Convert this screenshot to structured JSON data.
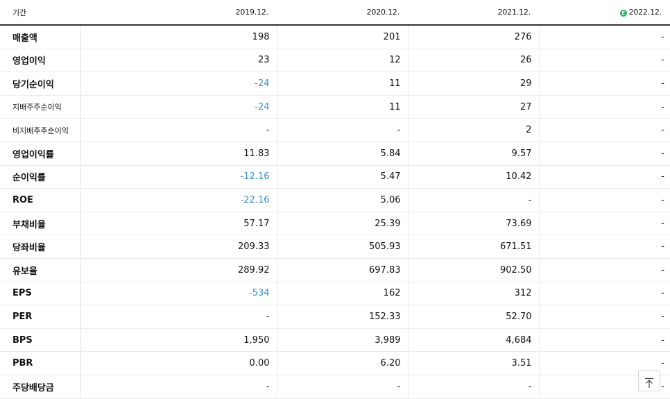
{
  "header": {
    "label": "기간",
    "periods": [
      "2019.12.",
      "2020.12.",
      "2021.12.",
      "2022.12."
    ],
    "estimate_badge": "E",
    "estimate_color": "#1bb26b"
  },
  "colors": {
    "negative": "#3a8ed6"
  },
  "rows": [
    {
      "label": "매출액",
      "values": [
        "198",
        "201",
        "276",
        "-"
      ]
    },
    {
      "label": "영업이익",
      "values": [
        "23",
        "12",
        "26",
        "-"
      ]
    },
    {
      "label": "당기순이익",
      "values": [
        "-24",
        "11",
        "29",
        "-"
      ]
    },
    {
      "label": "지배주주순이익",
      "values": [
        "-24",
        "11",
        "27",
        "-"
      ]
    },
    {
      "label": "비지배주주순이익",
      "values": [
        "-",
        "-",
        "2",
        "-"
      ]
    },
    {
      "label": "영업이익률",
      "values": [
        "11.83",
        "5.84",
        "9.57",
        "-"
      ]
    },
    {
      "label": "순이익률",
      "values": [
        "-12.16",
        "5.47",
        "10.42",
        "-"
      ]
    },
    {
      "label": "ROE",
      "values": [
        "-22.16",
        "5.06",
        "-",
        "-"
      ]
    },
    {
      "label": "부채비율",
      "values": [
        "57.17",
        "25.39",
        "73.69",
        "-"
      ]
    },
    {
      "label": "당좌비율",
      "values": [
        "209.33",
        "505.93",
        "671.51",
        "-"
      ]
    },
    {
      "label": "유보율",
      "values": [
        "289.92",
        "697.83",
        "902.50",
        "-"
      ]
    },
    {
      "label": "EPS",
      "values": [
        "-534",
        "162",
        "312",
        "-"
      ]
    },
    {
      "label": "PER",
      "values": [
        "-",
        "152.33",
        "52.70",
        "-"
      ]
    },
    {
      "label": "BPS",
      "values": [
        "1,950",
        "3,989",
        "4,684",
        "-"
      ]
    },
    {
      "label": "PBR",
      "values": [
        "0.00",
        "6.20",
        "3.51",
        "-"
      ]
    },
    {
      "label": "주당배당금",
      "values": [
        "-",
        "-",
        "-",
        "-"
      ]
    }
  ],
  "scroll_top_icon": "arrow-up-to-top-icon"
}
